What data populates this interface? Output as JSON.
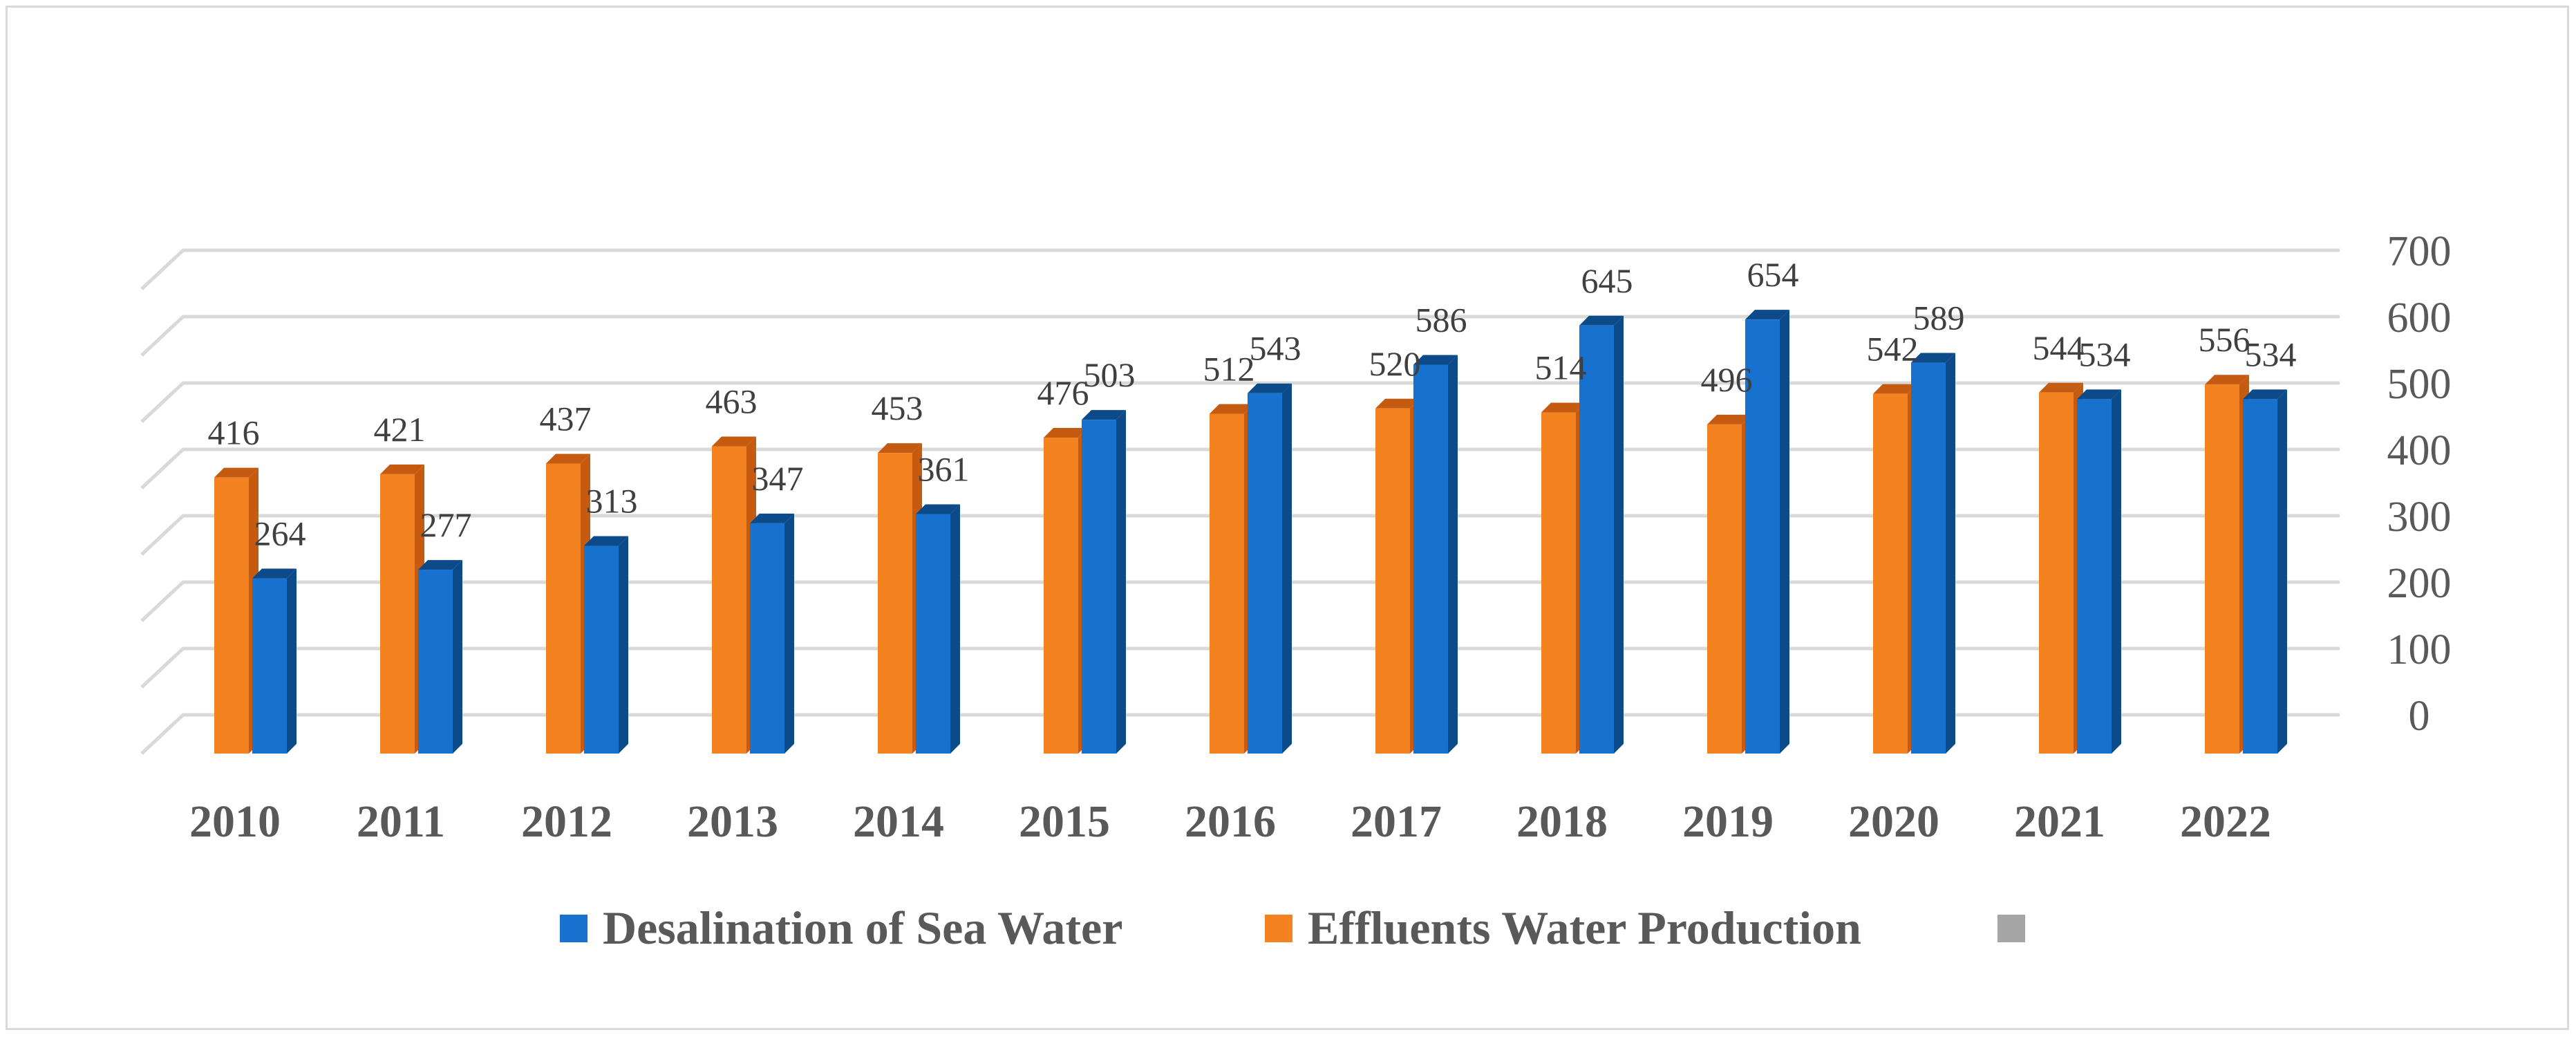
{
  "chart_data": {
    "type": "bar",
    "title": "",
    "xlabel": "",
    "ylabel": "",
    "ylim": [
      0,
      700
    ],
    "y_ticks": [
      0,
      100,
      200,
      300,
      400,
      500,
      600,
      700
    ],
    "y_axis_side": "right",
    "grid": true,
    "style": "3d-clustered-column",
    "categories": [
      "2010",
      "2011",
      "2012",
      "2013",
      "2014",
      "2015",
      "2016",
      "2017",
      "2018",
      "2019",
      "2020",
      "2021",
      "2022"
    ],
    "series": [
      {
        "name": "Effluents Water Production",
        "color": "#F58220",
        "side_color": "#C55A11",
        "values": [
          416,
          421,
          437,
          463,
          453,
          476,
          512,
          520,
          514,
          496,
          542,
          544,
          556
        ]
      },
      {
        "name": "Desalination of Sea Water",
        "color": "#1672CE",
        "side_color": "#0D4A8A",
        "values": [
          264,
          277,
          313,
          347,
          361,
          503,
          543,
          586,
          645,
          654,
          589,
          534,
          534
        ]
      }
    ],
    "legend": {
      "position": "bottom",
      "entries": [
        {
          "label": "Desalination of Sea Water",
          "color": "#1672CE"
        },
        {
          "label": "Effluents Water Production",
          "color": "#F58220"
        },
        {
          "label": "",
          "color": "#A5A5A5"
        }
      ]
    }
  }
}
